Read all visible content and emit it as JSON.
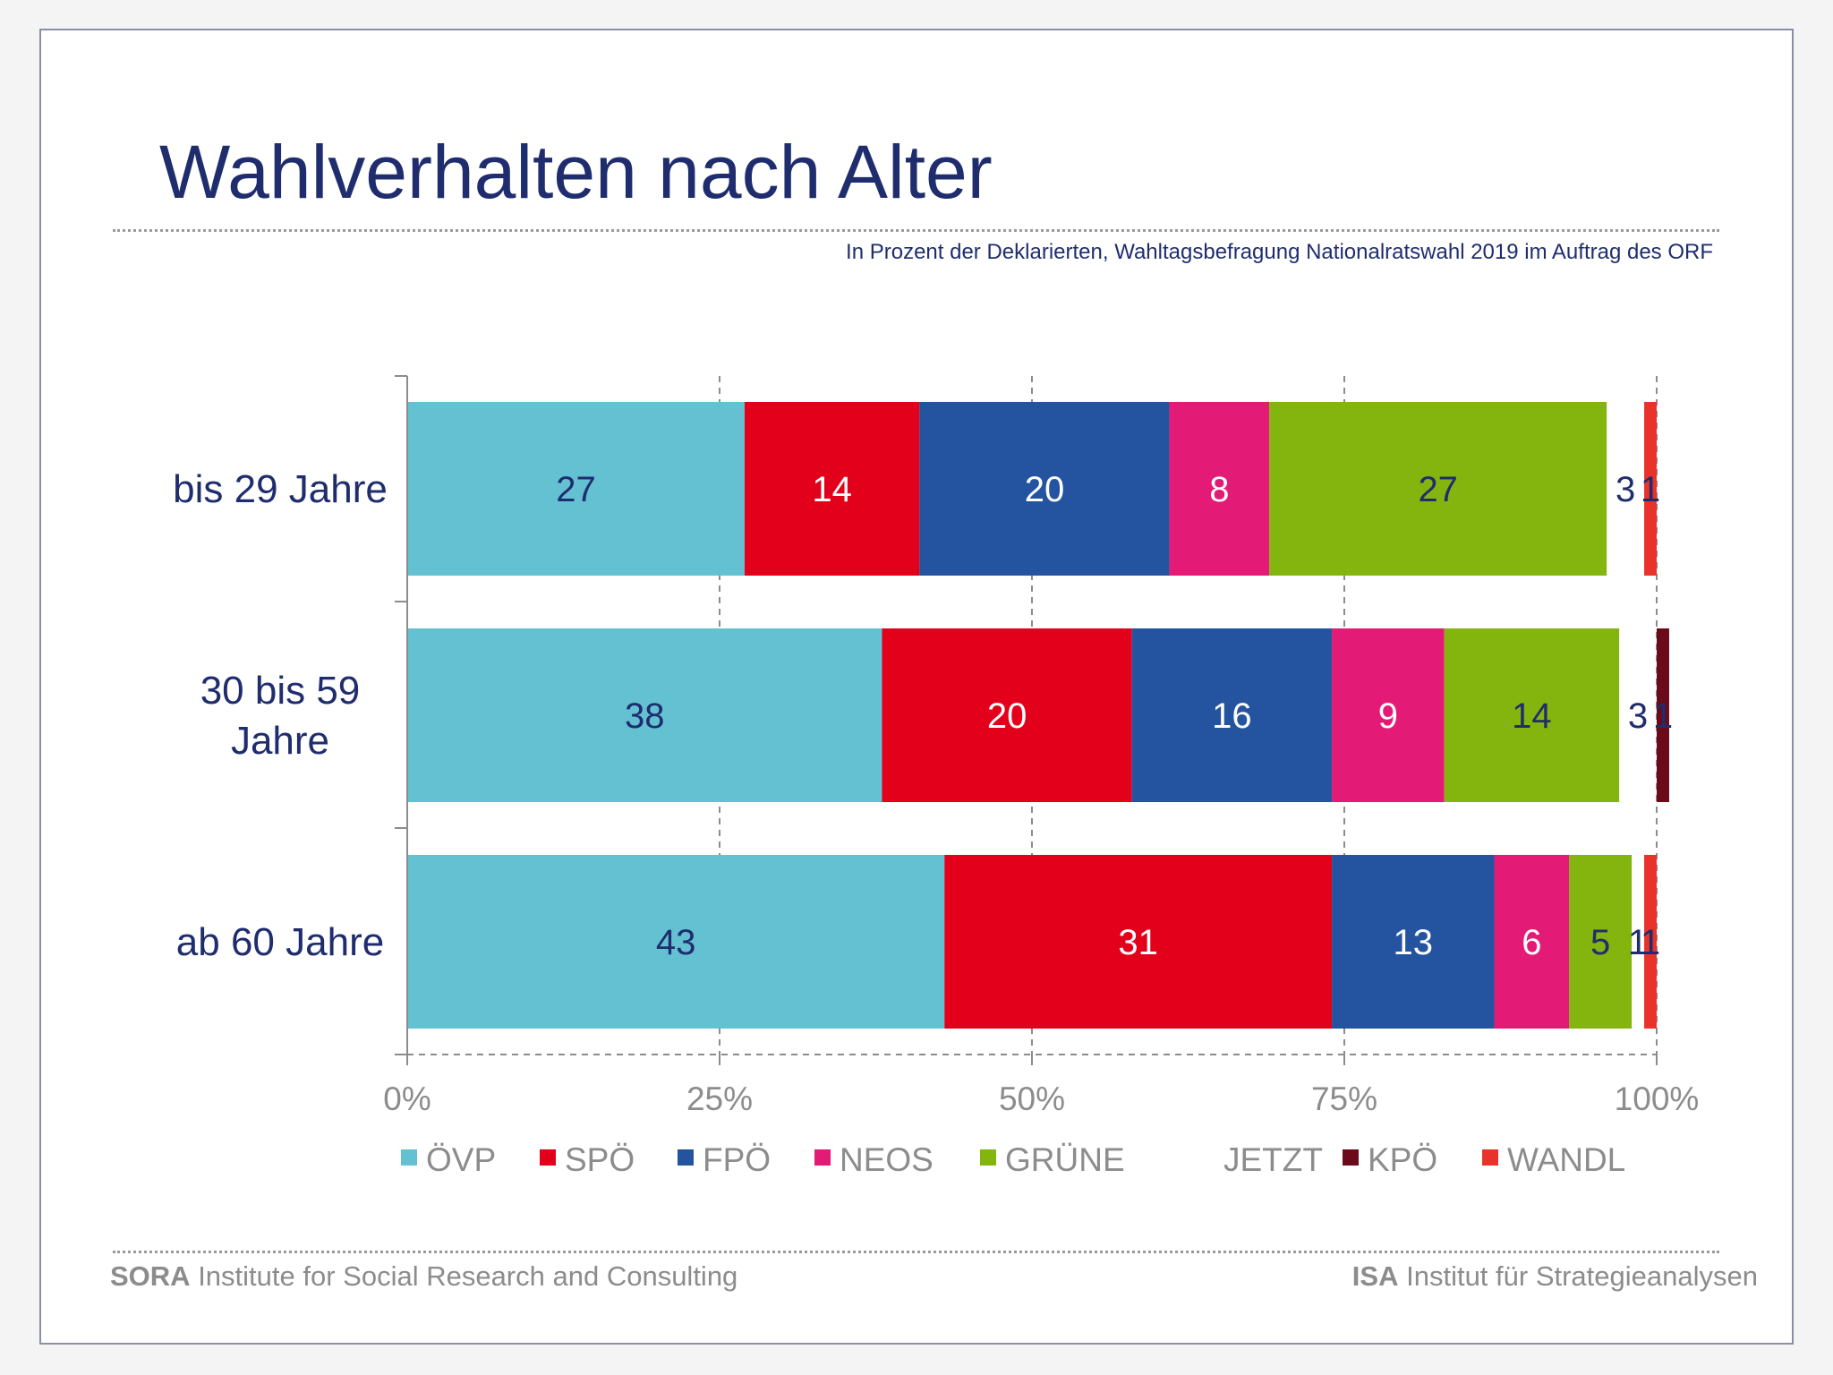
{
  "slide": {
    "title": "Wahlverhalten nach Alter",
    "subtitle": "In Prozent der Deklarierten, Wahltagsbefragung Nationalratswahl 2019 im Auftrag des ORF",
    "footer_left": {
      "bold": "SORA",
      "text": " Institute for Social Research and Consulting"
    },
    "footer_right": {
      "bold": "ISA",
      "text": " Institut für Strategieanalysen"
    }
  },
  "chart_data": {
    "type": "bar",
    "orientation": "horizontal",
    "stacked": true,
    "categories": [
      [
        "bis 29 Jahre"
      ],
      [
        "30 bis 59",
        "Jahre"
      ],
      [
        "ab 60 Jahre"
      ]
    ],
    "x_ticks": [
      "0%",
      "25%",
      "50%",
      "75%",
      "100%"
    ],
    "xlim": [
      0,
      100
    ],
    "grid": true,
    "legend_position": "bottom",
    "series": [
      {
        "name": "ÖVP",
        "color": "#63c1d2",
        "label_color": "#1f2d6e",
        "values": [
          27,
          38,
          43
        ]
      },
      {
        "name": "SPÖ",
        "color": "#e2001a",
        "label_color": "#ffffff",
        "values": [
          14,
          20,
          31
        ]
      },
      {
        "name": "FPÖ",
        "color": "#24549f",
        "label_color": "#ffffff",
        "values": [
          20,
          16,
          13
        ]
      },
      {
        "name": "NEOS",
        "color": "#e31b76",
        "label_color": "#ffffff",
        "values": [
          8,
          9,
          6
        ]
      },
      {
        "name": "GRÜNE",
        "color": "#83b50e",
        "label_color": "#1f2d6e",
        "values": [
          27,
          14,
          5
        ]
      },
      {
        "name": "JETZT",
        "color": "#ffffff",
        "label_color": "#1f2d6e",
        "values": [
          3,
          3,
          1
        ]
      },
      {
        "name": "KPÖ",
        "color": "#6a0a1a",
        "label_color": "#1f2d6e",
        "values": [
          0,
          1,
          0
        ]
      },
      {
        "name": "WANDL",
        "color": "#e8322b",
        "label_color": "#1f2d6e",
        "values": [
          1,
          0,
          1
        ]
      }
    ]
  }
}
